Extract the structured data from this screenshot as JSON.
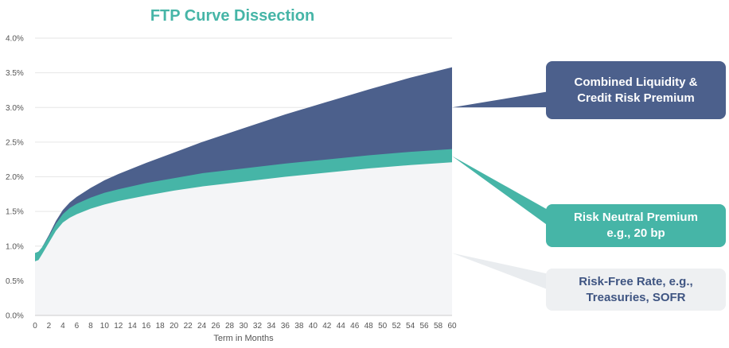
{
  "chart_data": {
    "type": "area",
    "title": "FTP Curve Dissection",
    "xlabel": "Term in Months",
    "ylabel": "",
    "x": [
      0,
      0.5,
      1,
      2,
      3,
      4,
      5,
      6,
      8,
      10,
      12,
      16,
      20,
      24,
      30,
      36,
      42,
      48,
      54,
      60
    ],
    "xticks": [
      0,
      2,
      4,
      6,
      8,
      10,
      12,
      14,
      16,
      18,
      20,
      22,
      24,
      26,
      28,
      30,
      32,
      34,
      36,
      38,
      40,
      42,
      44,
      46,
      48,
      50,
      52,
      54,
      56,
      58,
      60
    ],
    "yticks": [
      "0.0%",
      "0.5%",
      "1.0%",
      "1.5%",
      "2.0%",
      "2.5%",
      "3.0%",
      "3.5%",
      "4.0%"
    ],
    "xlim": [
      0,
      60
    ],
    "ylim": [
      0,
      4
    ],
    "grid": true,
    "series": [
      {
        "name": "Risk-Free Rate, e.g., Treasuries, SOFR",
        "color": "#f4f5f7",
        "values": [
          0.78,
          0.8,
          0.88,
          1.05,
          1.22,
          1.34,
          1.41,
          1.46,
          1.54,
          1.6,
          1.65,
          1.73,
          1.8,
          1.86,
          1.93,
          2.0,
          2.06,
          2.12,
          2.17,
          2.21
        ]
      },
      {
        "name": "Risk Neutral Premium e.g., 20 bp",
        "color": "#46b5a7",
        "values": [
          0.9,
          0.92,
          0.98,
          1.14,
          1.32,
          1.46,
          1.55,
          1.61,
          1.7,
          1.77,
          1.82,
          1.91,
          1.98,
          2.05,
          2.12,
          2.19,
          2.25,
          2.31,
          2.36,
          2.4
        ]
      },
      {
        "name": "Combined Liquidity & Credit Risk Premium",
        "color": "#4c608c",
        "values": [
          0.9,
          0.92,
          0.98,
          1.16,
          1.36,
          1.52,
          1.63,
          1.71,
          1.84,
          1.95,
          2.04,
          2.2,
          2.35,
          2.5,
          2.7,
          2.9,
          3.08,
          3.26,
          3.43,
          3.58
        ]
      }
    ]
  },
  "title_color": "#46b5a7",
  "callouts": {
    "liquidity": "Combined Liquidity &\nCredit Risk Premium",
    "risk_neutral": "Risk Neutral Premium\ne.g., 20 bp",
    "risk_free": "Risk-Free Rate, e.g.,\nTreasuries, SOFR"
  }
}
